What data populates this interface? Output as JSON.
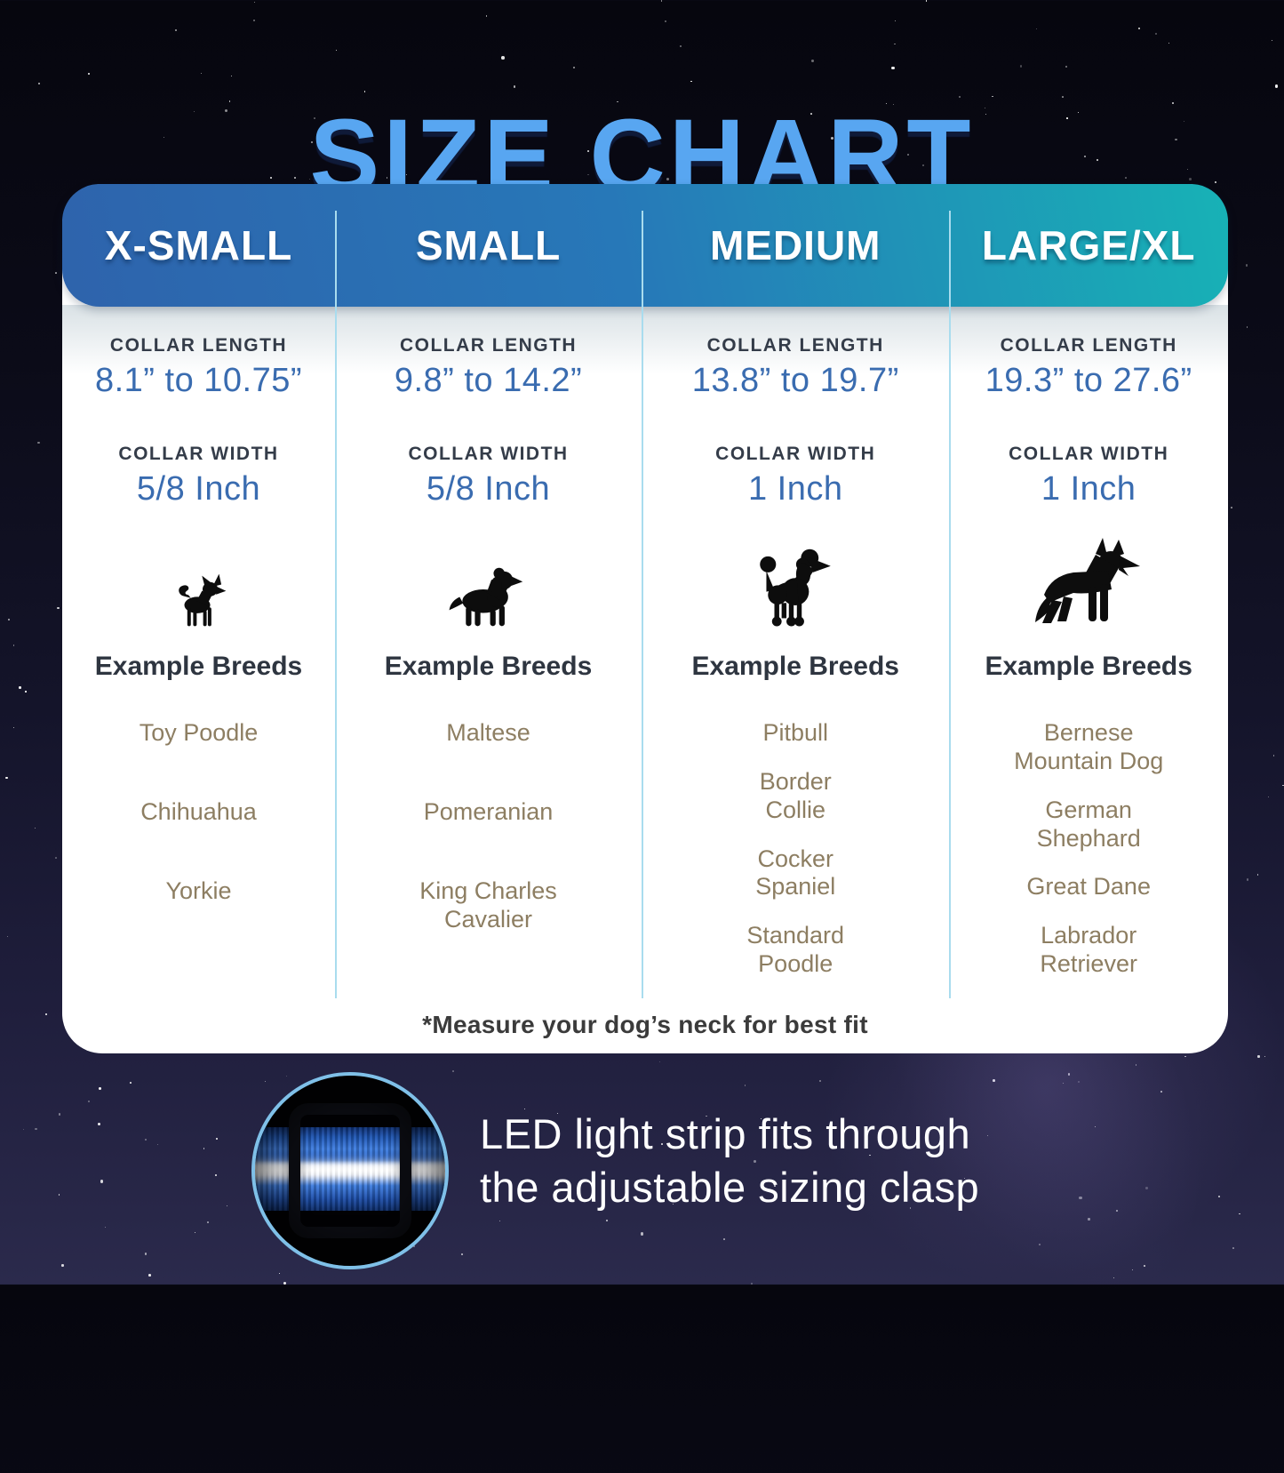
{
  "title": "SIZE CHART",
  "table": {
    "columns": [
      {
        "size_label": "X-SMALL",
        "collar_length_label": "COLLAR LENGTH",
        "collar_length_value": "8.1” to 10.75”",
        "collar_width_label": "COLLAR WIDTH",
        "collar_width_value": "5/8 Inch",
        "dog_icon": "chihuahua-silhouette",
        "example_breeds_label": "Example Breeds",
        "breeds": [
          "Toy Poodle",
          "Chihuahua",
          "Yorkie"
        ]
      },
      {
        "size_label": "SMALL",
        "collar_length_label": "COLLAR LENGTH",
        "collar_length_value": "9.8” to 14.2”",
        "collar_width_label": "COLLAR WIDTH",
        "collar_width_value": "5/8 Inch",
        "dog_icon": "cavalier-spaniel-silhouette",
        "example_breeds_label": "Example Breeds",
        "breeds": [
          "Maltese",
          "Pomeranian",
          "King Charles\nCavalier"
        ]
      },
      {
        "size_label": "MEDIUM",
        "collar_length_label": "COLLAR LENGTH",
        "collar_length_value": "13.8” to 19.7”",
        "collar_width_label": "COLLAR WIDTH",
        "collar_width_value": "1 Inch",
        "dog_icon": "poodle-silhouette",
        "example_breeds_label": "Example Breeds",
        "breeds": [
          "Pitbull",
          "Border\nCollie",
          "Cocker\nSpaniel",
          "Standard\nPoodle"
        ]
      },
      {
        "size_label": "LARGE/XL",
        "collar_length_label": "COLLAR LENGTH",
        "collar_length_value": "19.3” to 27.6”",
        "collar_width_label": "COLLAR WIDTH",
        "collar_width_value": "1 Inch",
        "dog_icon": "german-shepherd-silhouette",
        "example_breeds_label": "Example Breeds",
        "breeds": [
          "Bernese\nMountain Dog",
          "German\nShephard",
          "Great Dane",
          "Labrador\nRetriever"
        ]
      }
    ],
    "footnote": "*Measure your dog’s neck for best fit"
  },
  "bottom_note": {
    "text": "LED light strip fits through\nthe adjustable sizing clasp",
    "image_name": "led-collar-clasp-photo"
  },
  "colors": {
    "title_blue": "#58a6f1",
    "header_gradient_blue": "#2e63ac",
    "header_gradient_teal": "#17b2b6",
    "value_blue": "#3a6cb0",
    "label_dark": "#343c49",
    "breed_brown": "#8d7e62",
    "divider_light_blue": "#a9dcee",
    "card_white": "#ffffff",
    "collar_strap_blue": "#2a63c4",
    "led_strip_white": "#ffffff",
    "circle_ring_blue": "#7fc0e8"
  }
}
